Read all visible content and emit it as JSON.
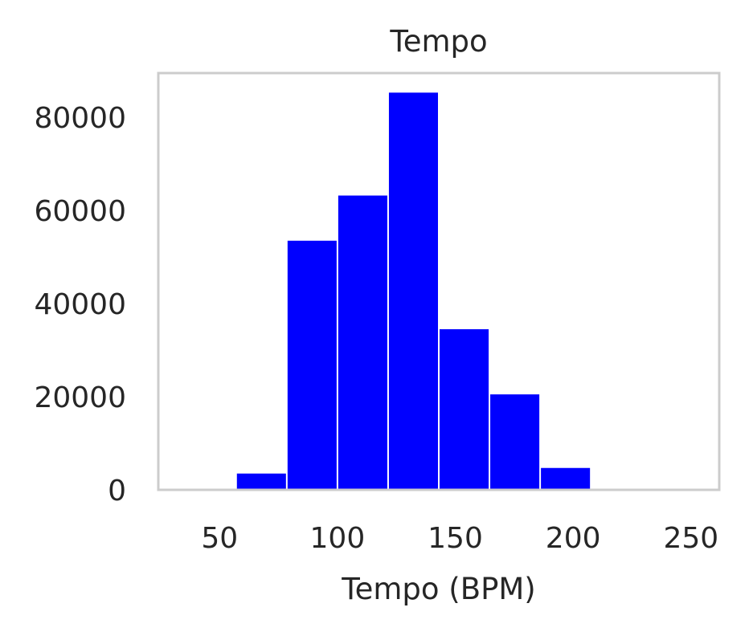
{
  "chart_data": {
    "type": "bar",
    "title": "Tempo",
    "xlabel": "Tempo (BPM)",
    "ylabel": "",
    "xlim": [
      24,
      262
    ],
    "ylim": [
      0,
      89500
    ],
    "xticks": [
      50,
      100,
      150,
      200,
      250
    ],
    "yticks": [
      0,
      20000,
      40000,
      60000,
      80000
    ],
    "grid": false,
    "bar_color": "#0000ff",
    "bins": [
      {
        "x0": 35.5,
        "x1": 57.0,
        "value": 0
      },
      {
        "x0": 57.0,
        "x1": 78.5,
        "value": 3500
      },
      {
        "x0": 78.5,
        "x1": 100.0,
        "value": 53500
      },
      {
        "x0": 100.0,
        "x1": 121.5,
        "value": 63200
      },
      {
        "x0": 121.5,
        "x1": 143.0,
        "value": 85300
      },
      {
        "x0": 143.0,
        "x1": 164.5,
        "value": 34500
      },
      {
        "x0": 164.5,
        "x1": 186.0,
        "value": 20500
      },
      {
        "x0": 186.0,
        "x1": 207.5,
        "value": 4700
      },
      {
        "x0": 207.5,
        "x1": 229.0,
        "value": 30
      },
      {
        "x0": 229.0,
        "x1": 250.5,
        "value": 5
      }
    ]
  }
}
